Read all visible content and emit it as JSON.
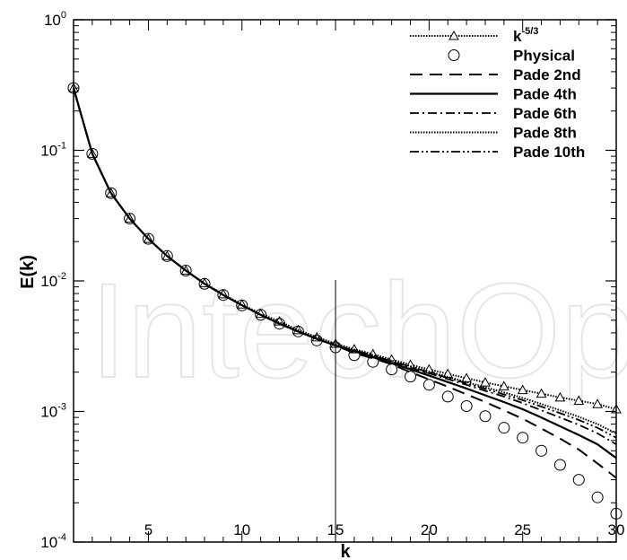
{
  "chart_data": {
    "type": "line",
    "xlabel": "k",
    "ylabel": "E(k)",
    "xlim": [
      1,
      30
    ],
    "ylim": [
      0.0001,
      1
    ],
    "yscale": "log",
    "x_ticks": [
      "5",
      "10",
      "15",
      "20",
      "25",
      "30"
    ],
    "y_ticks": [
      {
        "base": "10",
        "exp": "0"
      },
      {
        "base": "10",
        "exp": "-1"
      },
      {
        "base": "10",
        "exp": "-2"
      },
      {
        "base": "10",
        "exp": "-3"
      },
      {
        "base": "10",
        "exp": "-4"
      }
    ],
    "legend_position": "top-right",
    "vertical_marker_x": 15,
    "watermark": "IntechOpen",
    "x": [
      1,
      2,
      3,
      4,
      5,
      6,
      7,
      8,
      9,
      10,
      11,
      12,
      13,
      14,
      15,
      16,
      17,
      18,
      19,
      20,
      21,
      22,
      23,
      24,
      25,
      26,
      27,
      28,
      29,
      30
    ],
    "series": [
      {
        "name": "k",
        "name_sup": "-5/3",
        "style": "dotted-triangle",
        "values": [
          0.3,
          0.094,
          0.047,
          0.03,
          0.021,
          0.0155,
          0.012,
          0.0096,
          0.0079,
          0.0066,
          0.0056,
          0.0049,
          0.0042,
          0.0037,
          0.0033,
          0.003,
          0.00275,
          0.0025,
          0.00228,
          0.0021,
          0.00194,
          0.0018,
          0.00167,
          0.00156,
          0.00146,
          0.00137,
          0.00128,
          0.00121,
          0.00114,
          0.00104
        ]
      },
      {
        "name": "Physical",
        "style": "circle",
        "values": [
          0.3,
          0.094,
          0.047,
          0.03,
          0.021,
          0.0155,
          0.012,
          0.0095,
          0.0078,
          0.0065,
          0.0055,
          0.0047,
          0.0041,
          0.0035,
          0.0031,
          0.0027,
          0.0024,
          0.0021,
          0.00185,
          0.0016,
          0.0013,
          0.0011,
          0.00092,
          0.00075,
          0.00063,
          0.0005,
          0.00039,
          0.0003,
          0.00022,
          0.000165
        ]
      },
      {
        "name": "Pade 2nd",
        "style": "dashed",
        "values": [
          0.3,
          0.094,
          0.047,
          0.03,
          0.021,
          0.0155,
          0.012,
          0.0095,
          0.0078,
          0.0065,
          0.0055,
          0.0047,
          0.0041,
          0.0036,
          0.0032,
          0.0028,
          0.00255,
          0.0023,
          0.002,
          0.00176,
          0.00155,
          0.00135,
          0.00118,
          0.00102,
          0.00088,
          0.00074,
          0.00062,
          0.00051,
          0.0004,
          0.00031
        ]
      },
      {
        "name": "Pade 4th",
        "style": "solid",
        "values": [
          0.3,
          0.094,
          0.047,
          0.03,
          0.021,
          0.0155,
          0.012,
          0.0095,
          0.0078,
          0.0065,
          0.0055,
          0.0047,
          0.0041,
          0.0036,
          0.0032,
          0.0029,
          0.0026,
          0.00235,
          0.0021,
          0.00188,
          0.00168,
          0.0015,
          0.00133,
          0.00118,
          0.00104,
          0.0009,
          0.00077,
          0.00066,
          0.00056,
          0.00044
        ]
      },
      {
        "name": "Pade 6th",
        "style": "dashdot",
        "values": [
          0.3,
          0.094,
          0.047,
          0.03,
          0.021,
          0.0155,
          0.012,
          0.0095,
          0.0078,
          0.0065,
          0.0055,
          0.0047,
          0.0041,
          0.0036,
          0.0032,
          0.00292,
          0.00265,
          0.0024,
          0.00216,
          0.00196,
          0.00177,
          0.0016,
          0.00144,
          0.0013,
          0.00116,
          0.00102,
          0.0009,
          0.00079,
          0.00068,
          0.00056
        ]
      },
      {
        "name": "Pade 8th",
        "style": "dotted",
        "values": [
          0.3,
          0.094,
          0.047,
          0.03,
          0.021,
          0.0155,
          0.012,
          0.0095,
          0.0078,
          0.0065,
          0.0055,
          0.0048,
          0.0042,
          0.0037,
          0.0033,
          0.00298,
          0.0027,
          0.00245,
          0.00222,
          0.00202,
          0.00184,
          0.00168,
          0.00153,
          0.0014,
          0.00127,
          0.00114,
          0.00102,
          0.00091,
          0.0008,
          0.00068
        ]
      },
      {
        "name": "Pade 10th",
        "style": "dashdotdot",
        "values": [
          0.3,
          0.094,
          0.047,
          0.03,
          0.021,
          0.0155,
          0.012,
          0.0095,
          0.0078,
          0.0065,
          0.0055,
          0.0047,
          0.0041,
          0.0036,
          0.0032,
          0.00295,
          0.00268,
          0.00243,
          0.0022,
          0.002,
          0.00181,
          0.00164,
          0.00149,
          0.00135,
          0.00122,
          0.00109,
          0.00097,
          0.00086,
          0.00075,
          0.00063
        ]
      }
    ]
  }
}
